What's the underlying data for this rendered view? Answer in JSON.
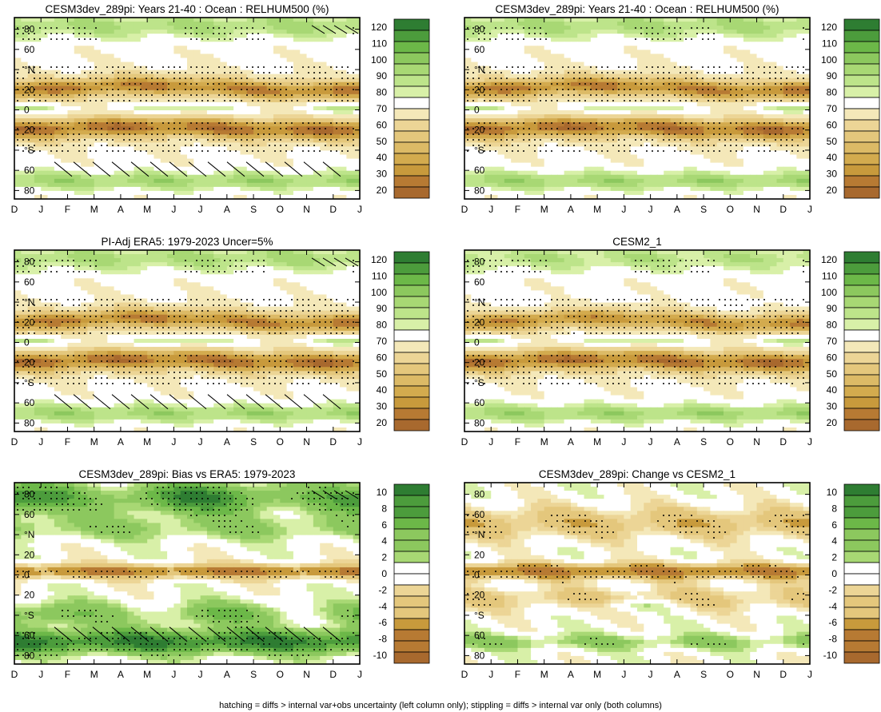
{
  "figure": {
    "footnote": "hatching = diffs > internal var+obs uncertainty (left column only); stippling = diffs > internal var only (both columns)"
  },
  "colors": {
    "brown_dark": "#a8692e",
    "brown_mid": "#c89a3c",
    "brown_light": "#e4c77c",
    "tan_pale": "#f4e8b9",
    "white": "#ffffff",
    "green_pale": "#d8f0a8",
    "green_light": "#a8d874",
    "green_mid": "#6cb848",
    "green_dark": "#2e7d32"
  },
  "chart_data": [
    {
      "id": "p1",
      "type": "heatmap",
      "title": "CESM3dev_289pi: Years 21-40 : Ocean : RELHUM500 (%)",
      "field": "absolute",
      "months": [
        "D",
        "J",
        "F",
        "M",
        "A",
        "M",
        "J",
        "J",
        "A",
        "S",
        "O",
        "N",
        "D",
        "J"
      ],
      "lat_labels": [
        "80",
        "60",
        "°N",
        "20",
        "0",
        "20",
        "°S",
        "60",
        "80"
      ],
      "colorbar": {
        "labels": [
          "120",
          "110",
          "100",
          "90",
          "80",
          "70",
          "60",
          "50",
          "40",
          "30",
          "20"
        ],
        "min": 15,
        "max": 125,
        "step": 5
      },
      "stipple": true,
      "hatch": true
    },
    {
      "id": "p2",
      "type": "heatmap",
      "title": "CESM3dev_289pi: Years 21-40 : Ocean : RELHUM500 (%)",
      "field": "absolute",
      "months": [
        "D",
        "J",
        "F",
        "M",
        "A",
        "M",
        "J",
        "J",
        "A",
        "S",
        "O",
        "N",
        "D",
        "J"
      ],
      "lat_labels": [
        "80",
        "60",
        "°N",
        "20",
        "0",
        "20",
        "°S",
        "60",
        "80"
      ],
      "colorbar": {
        "labels": [
          "120",
          "110",
          "100",
          "90",
          "80",
          "70",
          "60",
          "50",
          "40",
          "30",
          "20"
        ],
        "min": 15,
        "max": 125,
        "step": 5
      },
      "stipple": true,
      "hatch": false
    },
    {
      "id": "p3",
      "type": "heatmap",
      "title": "PI-Adj ERA5: 1979-2023 Uncer=5%",
      "field": "absolute",
      "months": [
        "D",
        "J",
        "F",
        "M",
        "A",
        "M",
        "J",
        "J",
        "A",
        "S",
        "O",
        "N",
        "D",
        "J"
      ],
      "lat_labels": [
        "80",
        "60",
        "°N",
        "20",
        "0",
        "20",
        "°S",
        "60",
        "80"
      ],
      "colorbar": {
        "labels": [
          "120",
          "110",
          "100",
          "90",
          "80",
          "70",
          "60",
          "50",
          "40",
          "30",
          "20"
        ],
        "min": 15,
        "max": 125,
        "step": 5
      },
      "stipple": true,
      "hatch": true
    },
    {
      "id": "p4",
      "type": "heatmap",
      "title": "CESM2_1",
      "field": "absolute",
      "months": [
        "D",
        "J",
        "F",
        "M",
        "A",
        "M",
        "J",
        "J",
        "A",
        "S",
        "O",
        "N",
        "D",
        "J"
      ],
      "lat_labels": [
        "80",
        "60",
        "°N",
        "20",
        "0",
        "20",
        "°S",
        "60",
        "80"
      ],
      "colorbar": {
        "labels": [
          "120",
          "110",
          "100",
          "90",
          "80",
          "70",
          "60",
          "50",
          "40",
          "30",
          "20"
        ],
        "min": 15,
        "max": 125,
        "step": 5
      },
      "stipple": true,
      "hatch": false
    },
    {
      "id": "p5",
      "type": "heatmap",
      "title": "CESM3dev_289pi: Bias vs ERA5: 1979-2023",
      "field": "bias",
      "months": [
        "D",
        "J",
        "F",
        "M",
        "A",
        "M",
        "J",
        "J",
        "A",
        "S",
        "O",
        "N",
        "D",
        "J"
      ],
      "lat_labels": [
        "80",
        "60",
        "°N",
        "20",
        "0",
        "20",
        "°S",
        "60",
        "80"
      ],
      "colorbar": {
        "labels": [
          "10",
          "8",
          "6",
          "4",
          "2",
          "0",
          "-2",
          "-4",
          "-6",
          "-8",
          "-10"
        ],
        "min": -11,
        "max": 11,
        "step": 1
      },
      "stipple": true,
      "hatch": true
    },
    {
      "id": "p6",
      "type": "heatmap",
      "title": "CESM3dev_289pi: Change vs CESM2_1",
      "field": "change",
      "months": [
        "D",
        "J",
        "F",
        "M",
        "A",
        "M",
        "J",
        "J",
        "A",
        "S",
        "O",
        "N",
        "D",
        "J"
      ],
      "lat_labels": [
        "80",
        "60",
        "°N",
        "20",
        "0",
        "20",
        "°S",
        "60",
        "80"
      ],
      "colorbar": {
        "labels": [
          "10",
          "8",
          "6",
          "4",
          "2",
          "0",
          "-2",
          "-4",
          "-6",
          "-8",
          "-10"
        ],
        "min": -11,
        "max": 11,
        "step": 1
      },
      "stipple": true,
      "hatch": false
    }
  ]
}
